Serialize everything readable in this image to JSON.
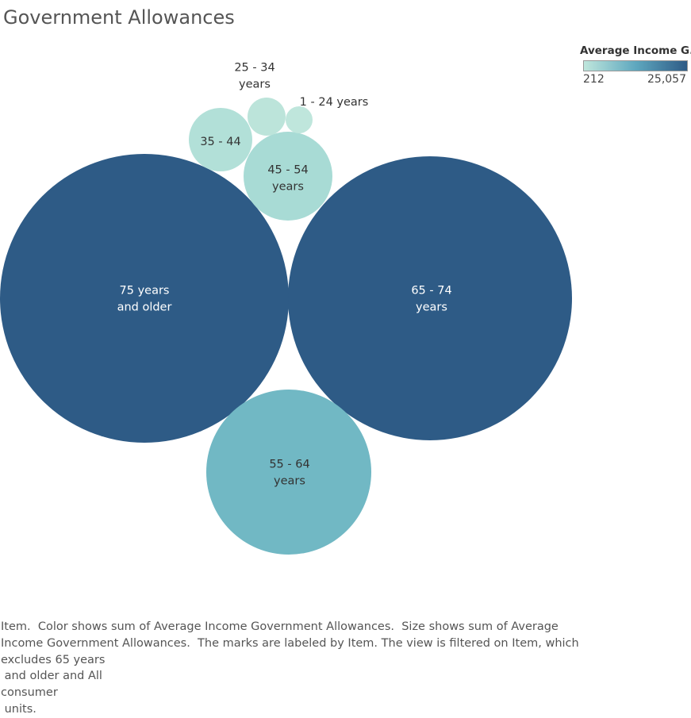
{
  "title": "Government Allowances",
  "legend": {
    "title": "Average Income G..",
    "min_label": "212",
    "max_label": "25,057",
    "min_value": 212,
    "max_value": 25057,
    "color_low": "#bfe6dc",
    "color_high": "#2e5b86"
  },
  "caption_lines": [
    "Item.  Color shows sum of Average Income Government Allowances.  Size shows sum of Average",
    "Income Government Allowances.  The marks are labeled by Item. The view is filtered on Item, which",
    "excludes 65 years",
    " and older and All",
    "consumer",
    " units."
  ],
  "chart_data": {
    "type": "bubble",
    "title": "Government Allowances",
    "size_measure": "Average Income Government Allowances",
    "color_measure": "Average Income Government Allowances",
    "color_scale": {
      "min": 212,
      "max": 25057,
      "low": "#bfe6dc",
      "high": "#2e5b86"
    },
    "bubbles": [
      {
        "label": [
          "75 years",
          "and older"
        ],
        "value": 25057,
        "color": "#2e5b86",
        "text_color": "#ffffff"
      },
      {
        "label": [
          "65 - 74",
          "years"
        ],
        "value": 24300,
        "color": "#2e5b86",
        "text_color": "#ffffff"
      },
      {
        "label": [
          "55 - 64",
          "years"
        ],
        "value": 8500,
        "color": "#71b8c4",
        "text_color": "#333333"
      },
      {
        "label": [
          "45 - 54",
          "years"
        ],
        "value": 2450,
        "color": "#a8dbd5",
        "text_color": "#333333"
      },
      {
        "label": [
          "35 - 44"
        ],
        "value": 1250,
        "color": "#b2e0d8",
        "text_color": "#333333"
      },
      {
        "label": [
          "25 - 34",
          "years"
        ],
        "value": 450,
        "color": "#bce4da",
        "text_color": "#333333"
      },
      {
        "label": [
          "1 - 24 years"
        ],
        "value": 212,
        "color": "#bfe6dc",
        "text_color": "#333333"
      }
    ]
  }
}
